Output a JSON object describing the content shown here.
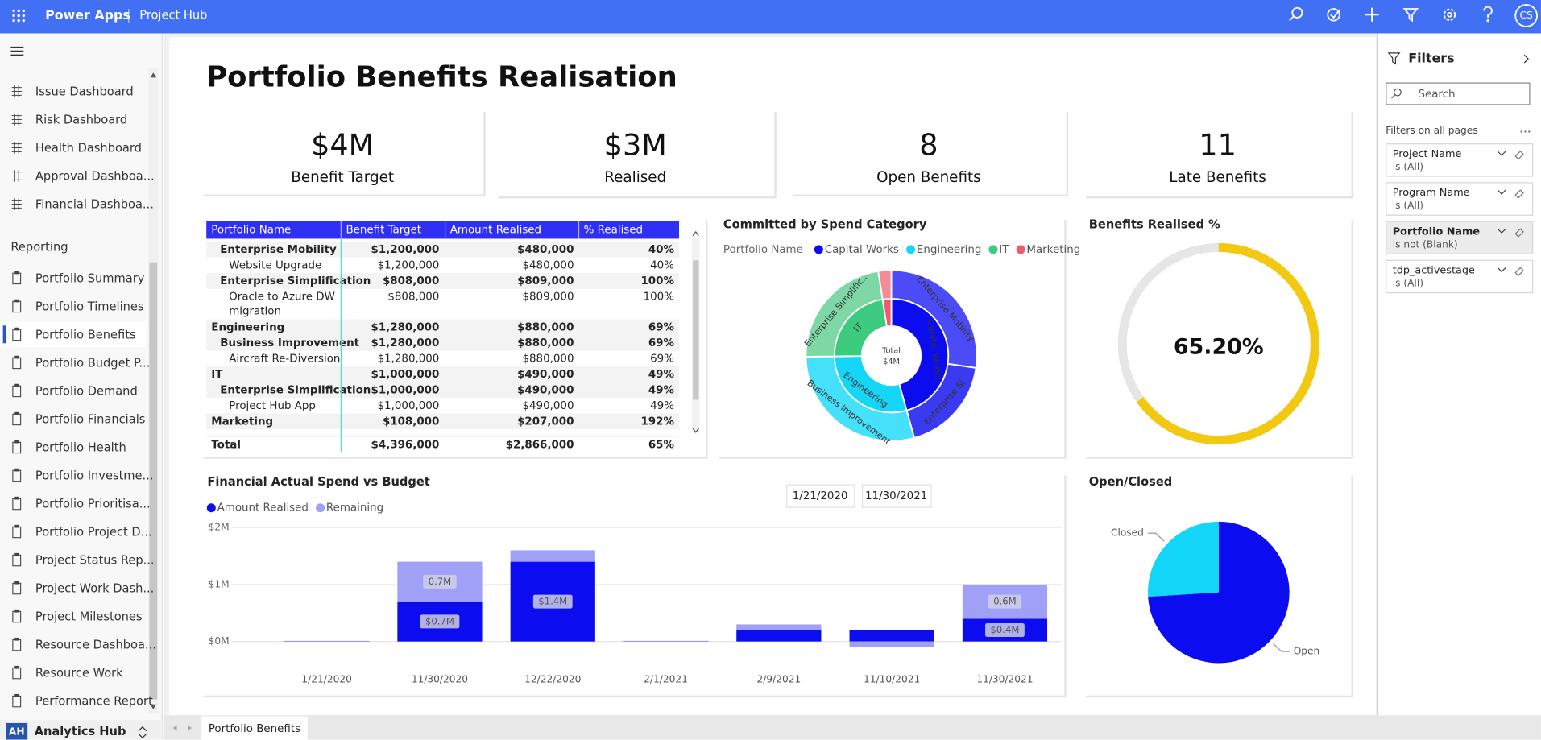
{
  "header": {
    "app": "Power Apps",
    "page": "Project Hub",
    "user": "CS"
  },
  "sidebar": {
    "items": [
      "Issue Dashboard",
      "Risk Dashboard",
      "Health Dashboard",
      "Approval Dashboa...",
      "Financial Dashboa..."
    ],
    "section": "Reporting",
    "reports": [
      "Portfolio Summary",
      "Portfolio Timelines",
      "Portfolio Benefits",
      "Portfolio Budget P...",
      "Portfolio Demand",
      "Portfolio Financials",
      "Portfolio Health",
      "Portfolio Investme...",
      "Portfolio Prioritisa...",
      "Portfolio Project D...",
      "Project Status Rep...",
      "Project Work Dash...",
      "Project Milestones",
      "Resource Dashboa...",
      "Resource Work",
      "Performance Report"
    ],
    "selected": 2,
    "workspace_badge": "AH",
    "workspace": "Analytics Hub"
  },
  "title": "Portfolio Benefits Realisation",
  "kpis": [
    {
      "value": "$4M",
      "label": "Benefit Target"
    },
    {
      "value": "$3M",
      "label": "Realised"
    },
    {
      "value": "8",
      "label": "Open Benefits"
    },
    {
      "value": "11",
      "label": "Late Benefits"
    }
  ],
  "table": {
    "columns": [
      "Portfolio Name",
      "Benefit Target",
      "Amount Realised",
      "% Realised"
    ],
    "rows": [
      {
        "level": 1,
        "cells": [
          "Enterprise Mobility",
          "$1,200,000",
          "$480,000",
          "40%"
        ]
      },
      {
        "level": 2,
        "cells": [
          "Website Upgrade",
          "$1,200,000",
          "$480,000",
          "40%"
        ]
      },
      {
        "level": 1,
        "cells": [
          "Enterprise Simplification",
          "$808,000",
          "$809,000",
          "100%"
        ]
      },
      {
        "level": 2,
        "cells": [
          "Oracle to Azure DW migration",
          "$808,000",
          "$809,000",
          "100%"
        ]
      },
      {
        "level": 0,
        "cells": [
          "Engineering",
          "$1,280,000",
          "$880,000",
          "69%"
        ]
      },
      {
        "level": 1,
        "cells": [
          "Business Improvement",
          "$1,280,000",
          "$880,000",
          "69%"
        ]
      },
      {
        "level": 2,
        "cells": [
          "Aircraft Re-Diversion",
          "$1,280,000",
          "$880,000",
          "69%"
        ]
      },
      {
        "level": 0,
        "cells": [
          "IT",
          "$1,000,000",
          "$490,000",
          "49%"
        ]
      },
      {
        "level": 1,
        "cells": [
          "Enterprise Simplification",
          "$1,000,000",
          "$490,000",
          "49%"
        ]
      },
      {
        "level": 2,
        "cells": [
          "Project Hub App",
          "$1,000,000",
          "$490,000",
          "49%"
        ]
      },
      {
        "level": 0,
        "cells": [
          "Marketing",
          "$108,000",
          "$207,000",
          "192%"
        ]
      }
    ],
    "total": [
      "Total",
      "$4,396,000",
      "$2,866,000",
      "65%"
    ]
  },
  "slicer": {
    "start": "1/21/2020",
    "end": "11/30/2021"
  },
  "chart_data": [
    {
      "type": "sunburst",
      "title": "Committed by Spend Category",
      "legend_title": "Portfolio Name",
      "center_label": "Total",
      "total": 4396000,
      "total_label": "$4M",
      "series": [
        {
          "name": "Capital Works",
          "color": "#0c0cf0",
          "value": 2008000,
          "children": [
            {
              "name": "Enterprise Mobility",
              "color": "#4b4bf7",
              "value": 1200000
            },
            {
              "name": "Enterprise Si",
              "color": "#3a3af2",
              "value": 808000
            }
          ]
        },
        {
          "name": "Engineering",
          "color": "#16d6f8",
          "value": 1280000,
          "children": [
            {
              "name": "Business Improvement",
              "color": "#45e1fb",
              "value": 1280000
            }
          ]
        },
        {
          "name": "IT",
          "color": "#3ccb7f",
          "value": 1000000,
          "children": [
            {
              "name": "Enterprise Simplific...",
              "color": "#7ed8a6",
              "value": 1000000
            }
          ]
        },
        {
          "name": "Marketing",
          "color": "#f05a6a",
          "value": 108000,
          "children": [
            {
              "name": null,
              "color": "#f58b97",
              "value": 108000
            }
          ]
        }
      ]
    },
    {
      "type": "gauge",
      "title": "Benefits Realised %",
      "range": [
        0,
        100
      ],
      "values": [
        65.2
      ],
      "value_labels": [
        "65.20%"
      ],
      "color": "#f2c811",
      "track_color": "#e6e6e6"
    },
    {
      "type": "bar",
      "stacked": true,
      "title": "Financial Actual Spend vs Budget",
      "categories": [
        "1/21/2020",
        "11/30/2020",
        "12/22/2020",
        "2/1/2021",
        "2/9/2021",
        "11/10/2021",
        "11/30/2021"
      ],
      "series": [
        {
          "name": "Amount Realised",
          "color": "#0c0cf0",
          "values": [
            10000,
            700000,
            1400000,
            10000,
            200000,
            200000,
            400000
          ],
          "value_labels": [
            null,
            "$0.7M",
            "$1.4M",
            null,
            null,
            null,
            "$0.4M"
          ]
        },
        {
          "name": "Remaining",
          "color": "#a0a0f7",
          "values": [
            0,
            700000,
            200000,
            0,
            100000,
            -100000,
            600000
          ],
          "value_labels": [
            null,
            "0.7M",
            null,
            null,
            null,
            null,
            "0.6M"
          ]
        }
      ],
      "ylim": [
        -450000,
        2000000
      ],
      "yticks": [
        {
          "value": 0,
          "label": "$0M"
        },
        {
          "value": 1000000,
          "label": "$1M"
        },
        {
          "value": 2000000,
          "label": "$2M"
        }
      ],
      "grid": true
    },
    {
      "type": "pie",
      "title": "Open/Closed",
      "categories": [
        "Open",
        "Closed"
      ],
      "values": [
        74,
        26
      ],
      "colors": [
        "#0c0cf0",
        "#12d6f7"
      ]
    }
  ],
  "filters": {
    "title": "Filters",
    "search": "Search",
    "section": "Filters on all pages",
    "items": [
      {
        "name": "Project Name",
        "condition": "is (All)",
        "active": false
      },
      {
        "name": "Program Name",
        "condition": "is (All)",
        "active": false
      },
      {
        "name": "Portfolio Name",
        "condition": "is not (Blank)",
        "active": true
      },
      {
        "name": "tdp_activestage",
        "condition": "is (All)",
        "active": false
      }
    ]
  },
  "tabs": [
    "Portfolio Benefits"
  ]
}
